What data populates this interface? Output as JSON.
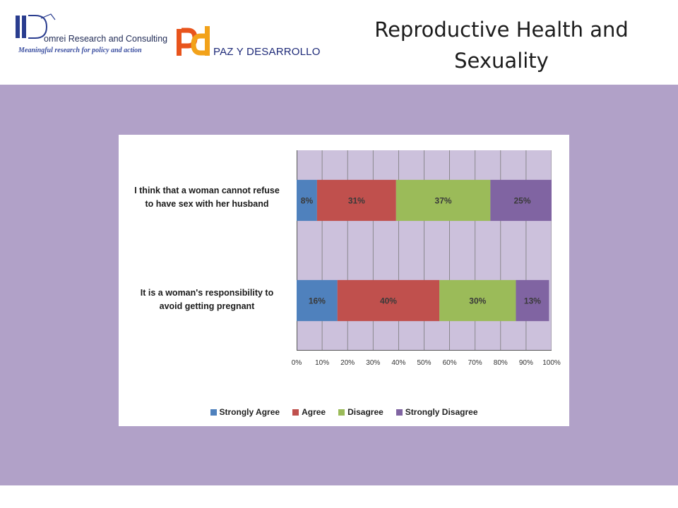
{
  "header": {
    "logo1_name": "omrei Research and Consulting",
    "logo1_tagline": "Meaningful research for policy and action",
    "logo2_text": "PAZ Y DESARROLLO",
    "title": "Reproductive Health and Sexuality"
  },
  "colors": {
    "band": "#b1a1c8",
    "plot_bg": "#ccc1dc",
    "series": [
      "#4f81bd",
      "#c0504d",
      "#9bbb59",
      "#8064a2"
    ]
  },
  "chart_data": {
    "type": "bar",
    "orientation": "horizontal",
    "stacked": "percent",
    "categories": [
      "I think that a woman cannot refuse to have sex with her husband",
      "It is a woman's responsibility to avoid getting pregnant"
    ],
    "category_lines": [
      [
        "I think that a woman cannot refuse",
        "to have sex with her husband"
      ],
      [
        "It is a woman's responsibility to",
        "avoid getting pregnant"
      ]
    ],
    "series": [
      {
        "name": "Strongly Agree",
        "values": [
          8,
          16
        ],
        "labels": [
          "8%",
          "16%"
        ]
      },
      {
        "name": "Agree",
        "values": [
          31,
          40
        ],
        "labels": [
          "31%",
          "40%"
        ]
      },
      {
        "name": "Disagree",
        "values": [
          37,
          30
        ],
        "labels": [
          "37%",
          "30%"
        ]
      },
      {
        "name": "Strongly Disagree",
        "values": [
          25,
          13
        ],
        "labels": [
          "25%",
          "13%"
        ]
      }
    ],
    "xticks": [
      "0%",
      "10%",
      "20%",
      "30%",
      "40%",
      "50%",
      "60%",
      "70%",
      "80%",
      "90%",
      "100%"
    ],
    "xlim": [
      0,
      100
    ],
    "grid": true,
    "legend_position": "bottom"
  }
}
